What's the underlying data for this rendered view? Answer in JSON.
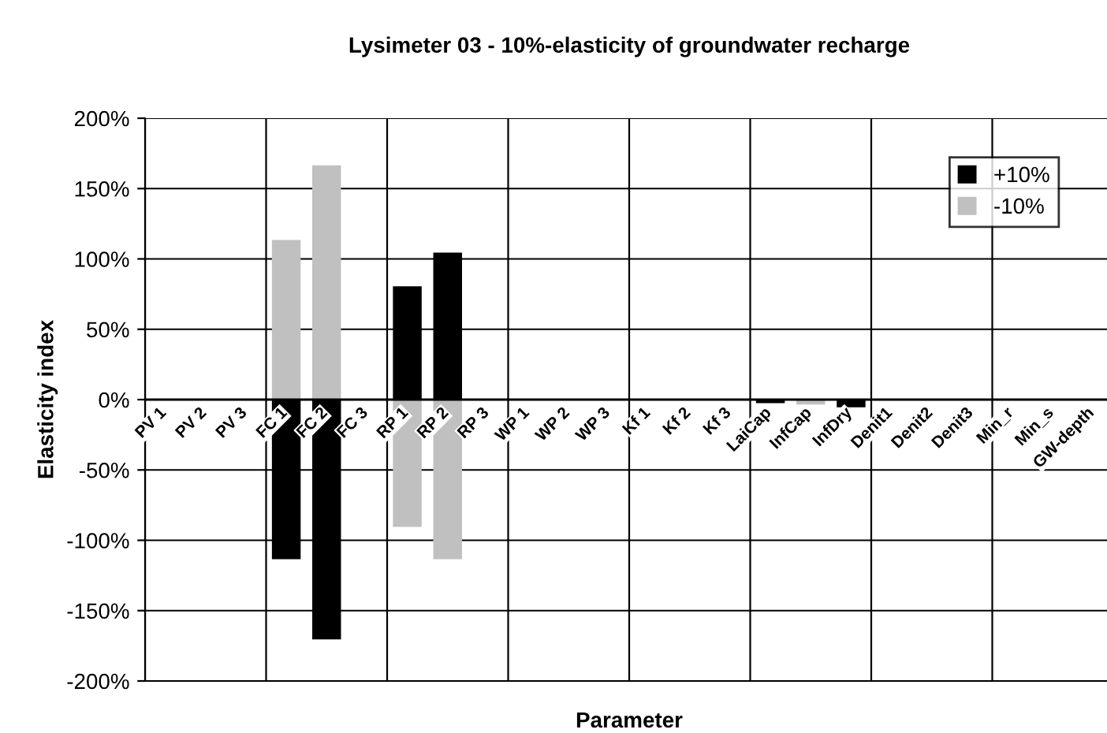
{
  "chart_data": {
    "type": "bar",
    "title": "Lysimeter 03 - 10%-elasticity of groundwater recharge",
    "xlabel": "Parameter",
    "ylabel": "Elasticity index",
    "categories": [
      "PV 1",
      "PV 2",
      "PV 3",
      "FC 1",
      "FC 2",
      "FC 3",
      "RP 1",
      "RP 2",
      "RP 3",
      "WP 1",
      "WP 2",
      "WP 3",
      "Kf 1",
      "Kf 2",
      "Kf 3",
      "LaiCap",
      "InfCap",
      "InfDry",
      "Denit1",
      "Denit2",
      "Denit3",
      "Min_r",
      "Min_s",
      "GW-depth"
    ],
    "series": [
      {
        "name": "+10%",
        "color": "#000000",
        "values": [
          null,
          null,
          null,
          -113,
          -170,
          null,
          80,
          104,
          null,
          null,
          null,
          null,
          null,
          null,
          null,
          -2,
          null,
          -5,
          null,
          null,
          null,
          null,
          null,
          null
        ]
      },
      {
        "name": "-10%",
        "color": "#c0c0c0",
        "values": [
          null,
          null,
          null,
          113,
          166,
          null,
          -90,
          -113,
          null,
          null,
          null,
          null,
          null,
          null,
          null,
          null,
          -3,
          null,
          null,
          null,
          null,
          null,
          null,
          null
        ]
      }
    ],
    "ylim": [
      -200,
      200
    ],
    "yticks": [
      {
        "value": -200,
        "label": "-200%"
      },
      {
        "value": -150,
        "label": "-150%"
      },
      {
        "value": -100,
        "label": "-100%"
      },
      {
        "value": -50,
        "label": "-50%"
      },
      {
        "value": 0,
        "label": "0%"
      },
      {
        "value": 50,
        "label": "50%"
      },
      {
        "value": 100,
        "label": "100%"
      },
      {
        "value": 150,
        "label": "150%"
      },
      {
        "value": 200,
        "label": "200%"
      }
    ],
    "grid": true,
    "legend": "top right"
  }
}
